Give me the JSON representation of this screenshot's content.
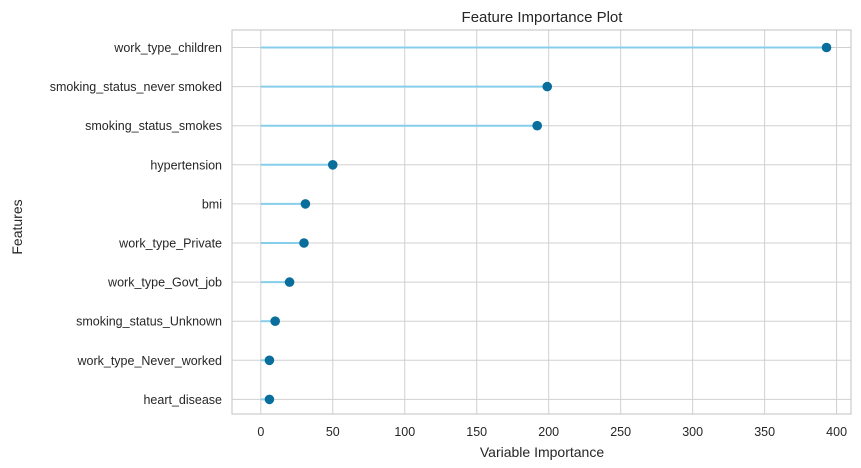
{
  "chart_data": {
    "type": "lollipop",
    "title": "Feature Importance Plot",
    "xlabel": "Variable Importance",
    "ylabel": "Features",
    "xlim": [
      -20,
      410
    ],
    "xticks": [
      0,
      50,
      100,
      150,
      200,
      250,
      300,
      350,
      400
    ],
    "grid": true,
    "categories": [
      "work_type_children",
      "smoking_status_never smoked",
      "smoking_status_smokes",
      "hypertension",
      "bmi",
      "work_type_Private",
      "work_type_Govt_job",
      "smoking_status_Unknown",
      "work_type_Never_worked",
      "heart_disease"
    ],
    "values": [
      393,
      199,
      192,
      50,
      31,
      30,
      20,
      10,
      6,
      6
    ],
    "colors": {
      "stem": "#87ceeb",
      "marker": "#0a6e9d",
      "grid": "#d0d0d0",
      "frame": "#cccccc",
      "text": "#262626"
    }
  }
}
